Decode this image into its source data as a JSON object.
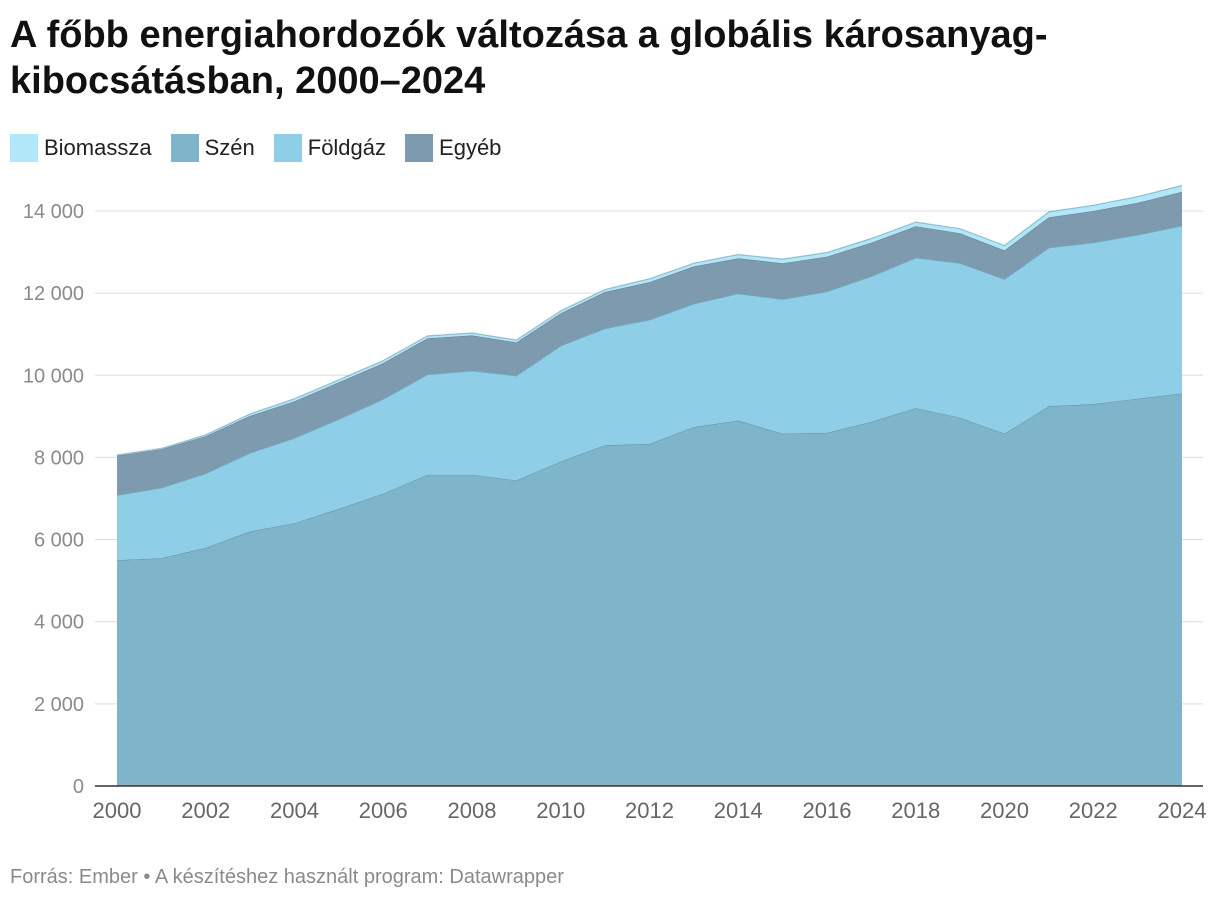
{
  "title": "A főbb energiahordozók változása a globális károsanyag-kibocsátásban, 2000–2024",
  "source": "Forrás: Ember • A készítéshez használt program: Datawrapper",
  "legend": [
    {
      "label": "Biomassza",
      "color": "#b0e8fa"
    },
    {
      "label": "Szén",
      "color": "#7fb5ca"
    },
    {
      "label": "Földgáz",
      "color": "#8ecfe7"
    },
    {
      "label": "Egyéb",
      "color": "#7d9aae"
    }
  ],
  "chart_data": {
    "type": "area",
    "stacked": true,
    "x": [
      2000,
      2001,
      2002,
      2003,
      2004,
      2005,
      2006,
      2007,
      2008,
      2009,
      2010,
      2011,
      2012,
      2013,
      2014,
      2015,
      2016,
      2017,
      2018,
      2019,
      2020,
      2021,
      2022,
      2023,
      2024
    ],
    "series": [
      {
        "name": "Szén",
        "color": "#7fb5ca",
        "values": [
          5500,
          5550,
          5800,
          6200,
          6400,
          6750,
          7120,
          7580,
          7580,
          7440,
          7900,
          8300,
          8330,
          8740,
          8900,
          8580,
          8600,
          8870,
          9200,
          8970,
          8580,
          9250,
          9300,
          9430,
          9560
        ]
      },
      {
        "name": "Földgáz",
        "color": "#8ecfe7",
        "values": [
          1580,
          1710,
          1810,
          1910,
          2070,
          2180,
          2300,
          2440,
          2530,
          2550,
          2820,
          2840,
          3020,
          3000,
          3090,
          3270,
          3440,
          3540,
          3660,
          3760,
          3760,
          3860,
          3930,
          3990,
          4080
        ]
      },
      {
        "name": "Egyéb",
        "color": "#7d9aae",
        "values": [
          960,
          940,
          910,
          900,
          900,
          900,
          880,
          880,
          860,
          810,
          790,
          890,
          920,
          910,
          860,
          880,
          850,
          820,
          770,
          730,
          700,
          740,
          770,
          780,
          830
        ]
      },
      {
        "name": "Biomassza",
        "color": "#b0e8fa",
        "values": [
          20,
          20,
          30,
          50,
          60,
          60,
          60,
          60,
          60,
          60,
          60,
          60,
          80,
          80,
          90,
          100,
          100,
          100,
          100,
          110,
          120,
          130,
          140,
          150,
          150
        ]
      }
    ],
    "y_ticks": [
      "0",
      "2 000",
      "4 000",
      "6 000",
      "8 000",
      "10 000",
      "12 000",
      "14 000"
    ],
    "x_ticks": [
      "2000",
      "2002",
      "2004",
      "2006",
      "2008",
      "2010",
      "2012",
      "2014",
      "2016",
      "2018",
      "2020",
      "2022",
      "2024"
    ],
    "ylim": [
      0,
      14000
    ],
    "xlim": [
      2000,
      2024
    ],
    "grid": true,
    "xlabel": "",
    "ylabel": ""
  }
}
